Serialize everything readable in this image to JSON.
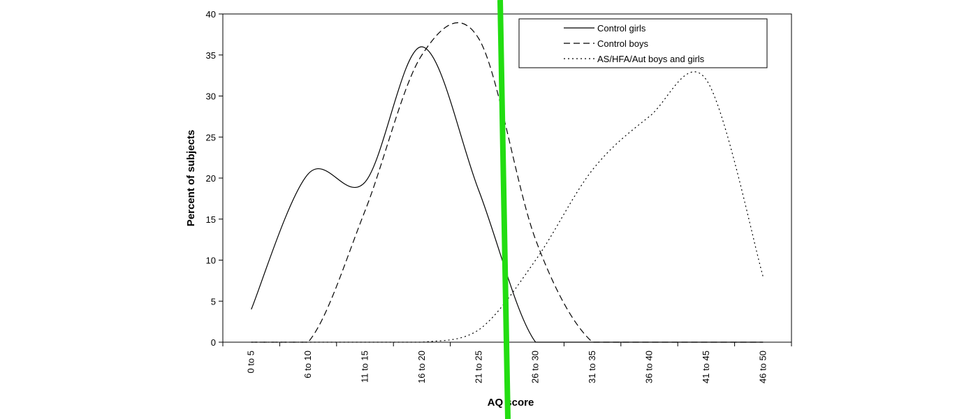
{
  "chart_data": {
    "type": "line",
    "title": "",
    "xlabel": "AQ score",
    "ylabel": "Percent of subjects",
    "categories": [
      "0 to 5",
      "6 to 10",
      "11 to 15",
      "16 to 20",
      "21 to 25",
      "26 to 30",
      "31 to 35",
      "36 to 40",
      "41 to 45",
      "46 to 50"
    ],
    "ylim": [
      0,
      40
    ],
    "yticks": [
      0,
      5,
      10,
      15,
      20,
      25,
      30,
      35,
      40
    ],
    "grid": false,
    "legend_position": "top-right",
    "series": [
      {
        "name": "Control girls",
        "style": "solid",
        "values": [
          4,
          20.5,
          19.5,
          36,
          18.5,
          0,
          0,
          0,
          0,
          0
        ]
      },
      {
        "name": "Control boys",
        "style": "dashed",
        "values": [
          0,
          0,
          16,
          35,
          37,
          12.5,
          0,
          0,
          0,
          0
        ]
      },
      {
        "name": "AS/HFA/Aut boys and girls",
        "style": "dotted",
        "values": [
          0,
          0,
          0,
          0,
          1.5,
          10,
          21,
          27.5,
          32,
          8
        ]
      }
    ],
    "overlay_line_color": "#22dd11"
  }
}
